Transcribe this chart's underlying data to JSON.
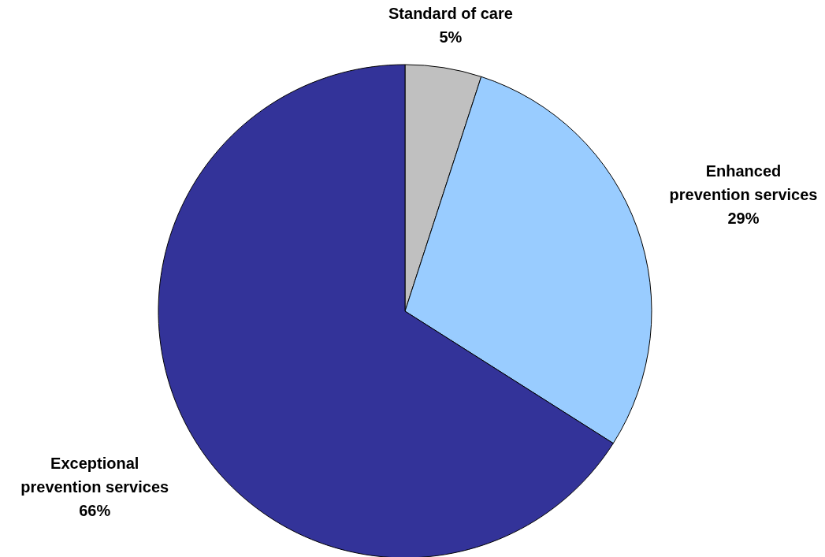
{
  "chart_data": {
    "type": "pie",
    "categories": [
      "Standard of care",
      "Enhanced prevention services",
      "Exceptional prevention services"
    ],
    "values": [
      5,
      29,
      66
    ],
    "colors": [
      "#c0c0c0",
      "#99ccff",
      "#333399"
    ],
    "value_labels": [
      "5%",
      "29%",
      "66%"
    ]
  }
}
